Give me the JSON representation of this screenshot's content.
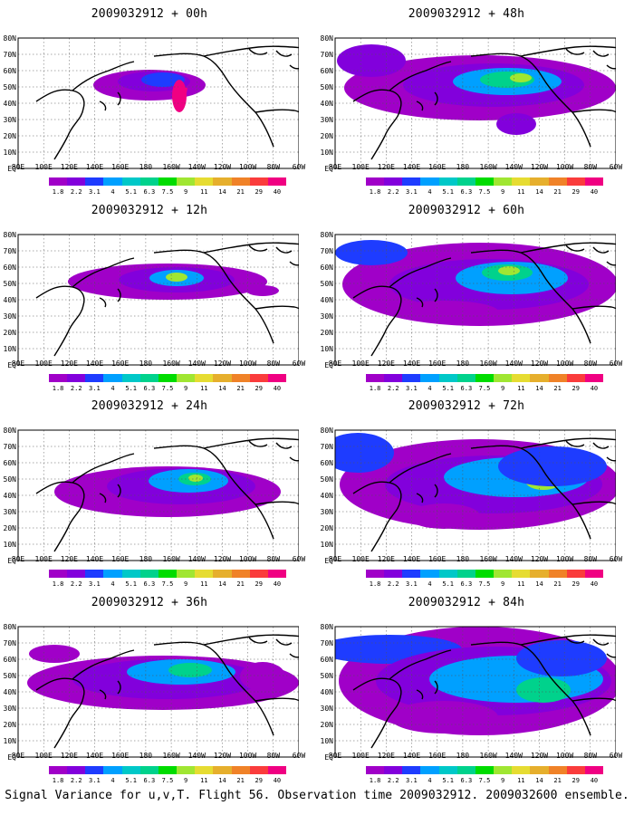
{
  "footer": "Signal Variance for u,v,T. Flight 56. Observation time 2009032912. 2009032600 ensemble.",
  "lat_labels": [
    "80N",
    "70N",
    "60N",
    "50N",
    "40N",
    "30N",
    "20N",
    "10N",
    "EQ"
  ],
  "lon_labels": [
    "80E",
    "100E",
    "120E",
    "140E",
    "160E",
    "180",
    "160W",
    "140W",
    "120W",
    "100W",
    "80W",
    "60W"
  ],
  "legend": {
    "ticks": [
      "1.8",
      "2.2",
      "3.1",
      "4",
      "5.1",
      "6.3",
      "7.5",
      "9",
      "11",
      "14",
      "21",
      "29",
      "40"
    ],
    "colors": [
      "#a000c8",
      "#8200dc",
      "#1e3cff",
      "#00a0ff",
      "#00c8c8",
      "#00d28c",
      "#00dc00",
      "#a0e632",
      "#e6dc32",
      "#e6af2d",
      "#f08228",
      "#fa3c3c",
      "#f00082"
    ]
  },
  "panels": [
    {
      "title": "2009032912 + 00h"
    },
    {
      "title": "2009032912 + 12h"
    },
    {
      "title": "2009032912 + 24h"
    },
    {
      "title": "2009032912 + 36h"
    },
    {
      "title": "2009032912 + 48h"
    },
    {
      "title": "2009032912 + 60h"
    },
    {
      "title": "2009032912 + 72h"
    },
    {
      "title": "2009032912 + 84h"
    }
  ]
}
